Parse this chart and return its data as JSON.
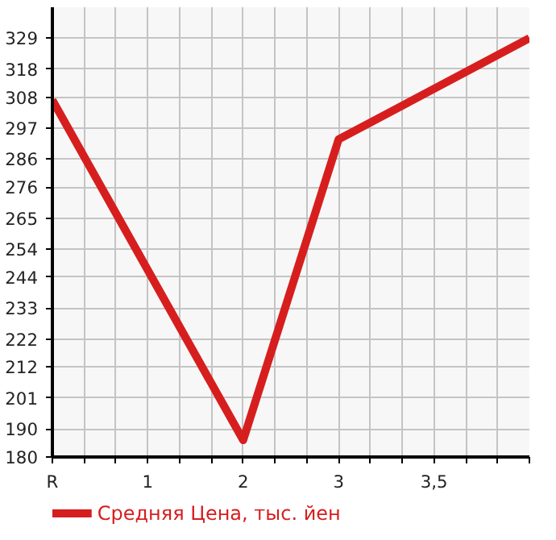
{
  "chart_data": {
    "type": "line",
    "categories": [
      "R",
      "1",
      "2",
      "3",
      "3,5",
      null
    ],
    "series": [
      {
        "name": "Средняя Цена, тыс. йен",
        "color": "#d71e1e",
        "values": [
          307,
          null,
          186,
          293,
          null,
          329
        ]
      }
    ],
    "ylim": [
      180,
      340
    ],
    "yticks": [
      180,
      190,
      201,
      212,
      222,
      233,
      244,
      254,
      265,
      276,
      286,
      297,
      308,
      318,
      329
    ],
    "grid": true,
    "legend": "bottom",
    "line_style": "solid"
  }
}
